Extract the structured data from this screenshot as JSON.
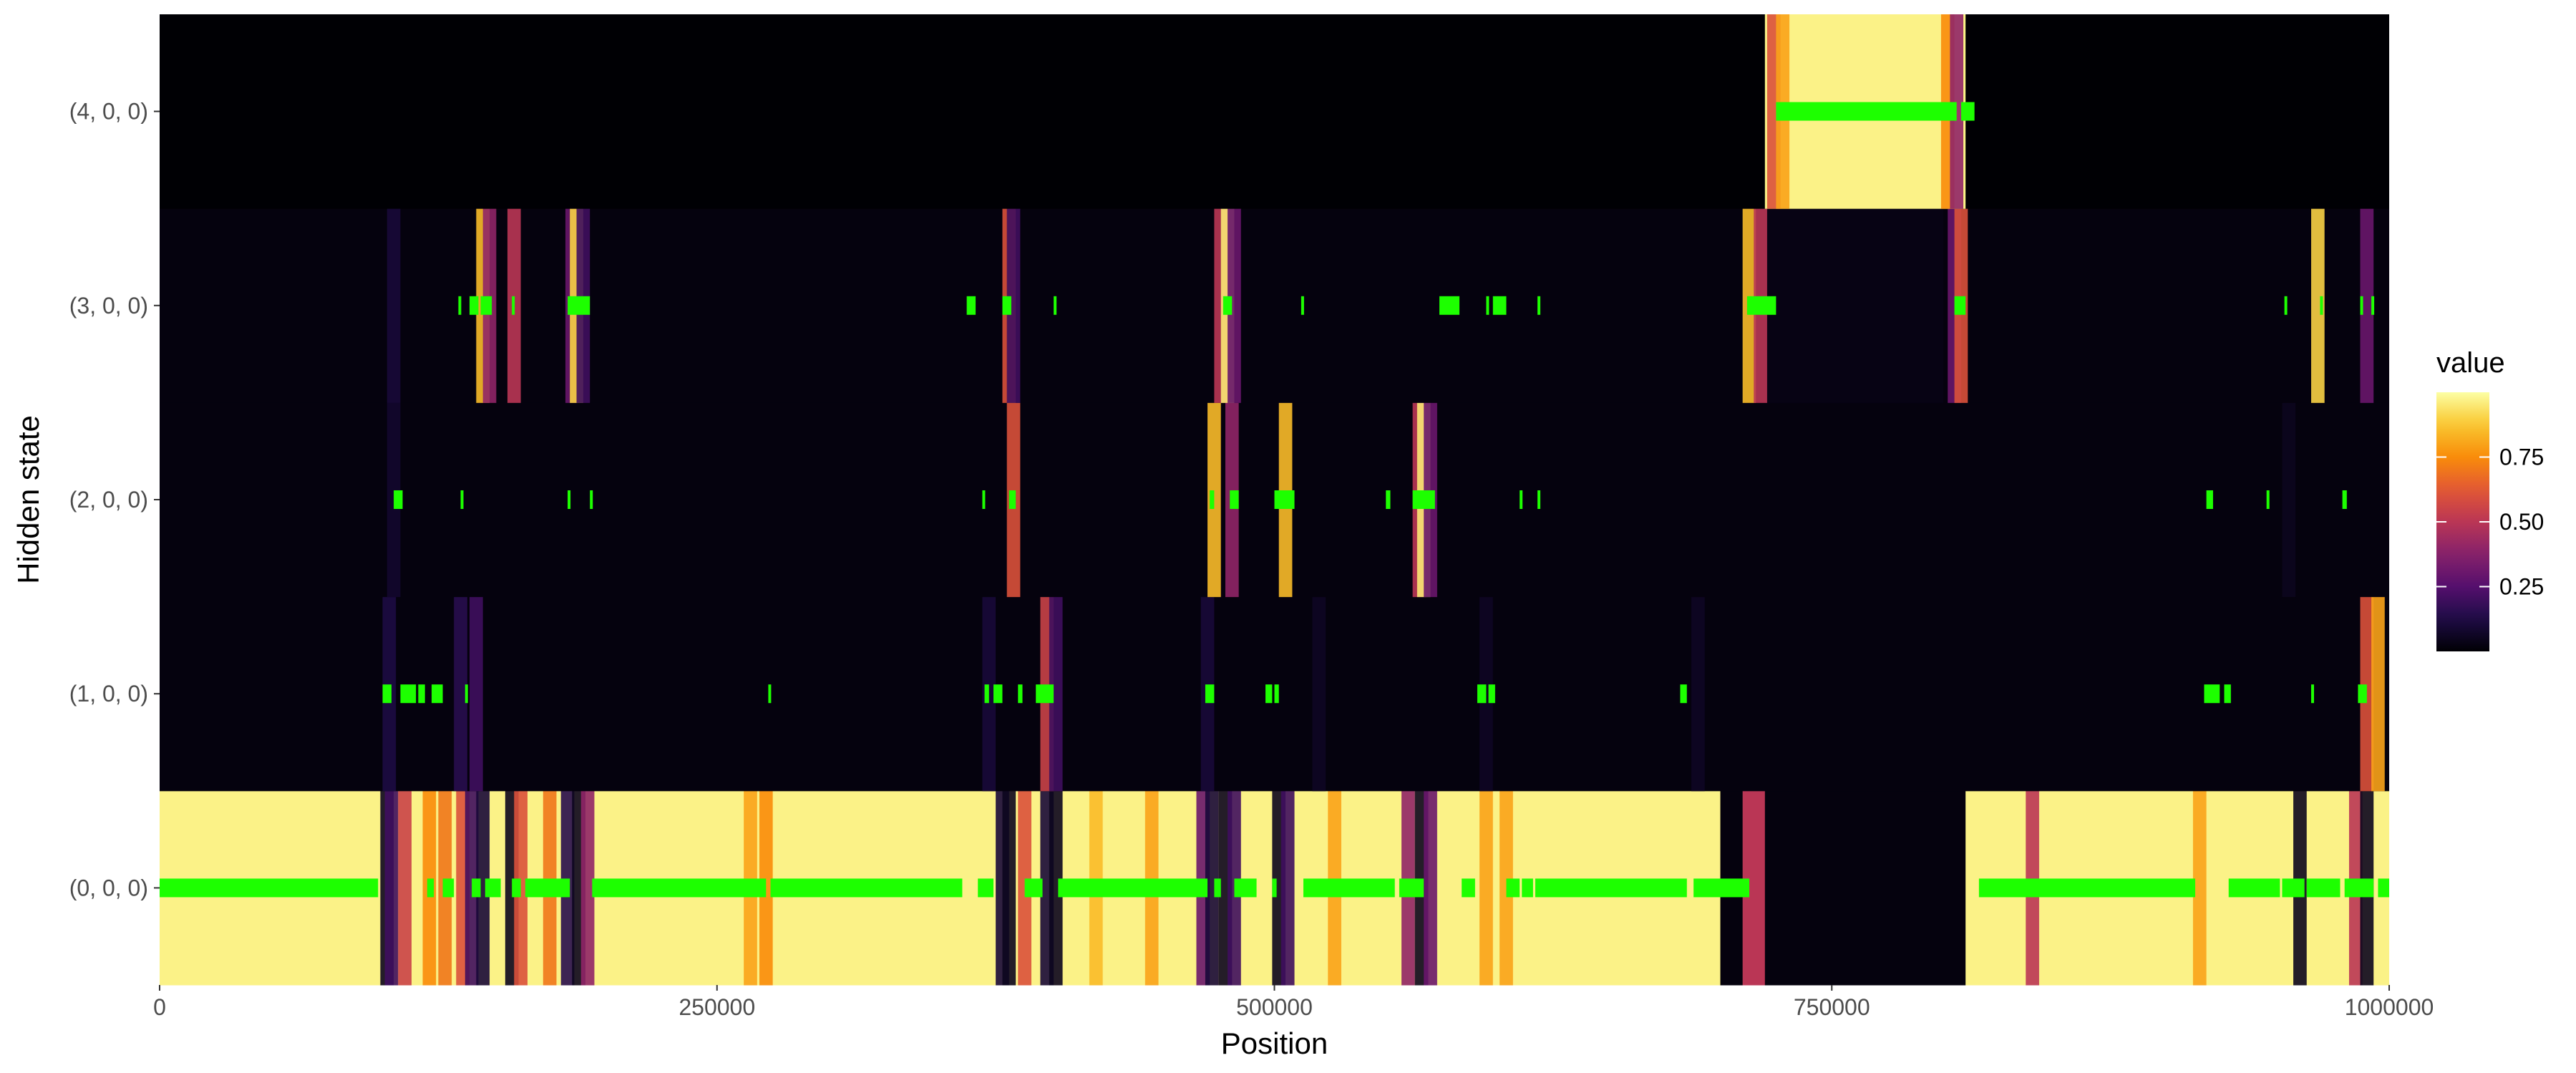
{
  "chart_data": {
    "type": "heatmap",
    "xlabel": "Position",
    "ylabel": "Hidden state",
    "xlim": [
      0,
      1000000
    ],
    "x_ticks": [
      0,
      250000,
      500000,
      750000,
      1000000
    ],
    "x_tick_labels": [
      "0",
      "250000",
      "500000",
      "750000",
      "1000000"
    ],
    "y_categories": [
      "(0, 0, 0)",
      "(1, 0, 0)",
      "(2, 0, 0)",
      "(3, 0, 0)",
      "(4, 0, 0)"
    ],
    "colorscale": "inferno",
    "colors": {
      "low": "#000004",
      "mid_low": "#3b0f70",
      "mid": "#b5367a",
      "mid_high": "#fb8d29",
      "high": "#fcffa4",
      "path": "#1dff00"
    },
    "legend": {
      "title": "value",
      "placement": "right",
      "range": [
        0,
        1
      ],
      "ticks": [
        0.25,
        0.5,
        0.75
      ],
      "tick_labels": [
        "0.25",
        "0.50",
        "0.75"
      ]
    },
    "grid": false,
    "note_green": "decoded path",
    "series": [
      {
        "state": "(0, 0, 0)",
        "base_value": 0.97,
        "blocks": [
          {
            "start": 700000,
            "end": 810000,
            "value": 0.02
          },
          {
            "start": 710000,
            "end": 720000,
            "value": 0.5
          }
        ],
        "dips": [
          [
            102000,
            0.05
          ],
          [
            104000,
            0.2
          ],
          [
            110000,
            0.55
          ],
          [
            121000,
            0.75
          ],
          [
            128000,
            0.7
          ],
          [
            136000,
            0.6
          ],
          [
            140000,
            0.2
          ],
          [
            145000,
            0.1
          ],
          [
            158000,
            0.05
          ],
          [
            162000,
            0.6
          ],
          [
            175000,
            0.7
          ],
          [
            183000,
            0.15
          ],
          [
            188000,
            0.05
          ],
          [
            192000,
            0.4
          ],
          [
            265000,
            0.8
          ],
          [
            272000,
            0.75
          ],
          [
            378000,
            0.1
          ],
          [
            381000,
            0.05
          ],
          [
            388000,
            0.6
          ],
          [
            398000,
            0.1
          ],
          [
            402000,
            0.05
          ],
          [
            420000,
            0.85
          ],
          [
            445000,
            0.8
          ],
          [
            468000,
            0.3
          ],
          [
            472000,
            0.1
          ],
          [
            478000,
            0.05
          ],
          [
            482000,
            0.2
          ],
          [
            502000,
            0.05
          ],
          [
            506000,
            0.2
          ],
          [
            527000,
            0.8
          ],
          [
            560000,
            0.4
          ],
          [
            566000,
            0.05
          ],
          [
            570000,
            0.3
          ],
          [
            595000,
            0.8
          ],
          [
            604000,
            0.8
          ],
          [
            840000,
            0.5
          ],
          [
            915000,
            0.8
          ],
          [
            960000,
            0.05
          ],
          [
            985000,
            0.5
          ],
          [
            990000,
            0.05
          ]
        ],
        "path_segments": [
          [
            0,
            98000
          ],
          [
            120000,
            123000
          ],
          [
            127000,
            132000
          ],
          [
            140000,
            144000
          ],
          [
            146000,
            153000
          ],
          [
            158000,
            162000
          ],
          [
            164000,
            184000
          ],
          [
            194000,
            272000
          ],
          [
            274000,
            360000
          ],
          [
            367000,
            374000
          ],
          [
            388000,
            396000
          ],
          [
            403000,
            470000
          ],
          [
            473000,
            476000
          ],
          [
            482000,
            492000
          ],
          [
            499000,
            501000
          ],
          [
            513000,
            554000
          ],
          [
            556000,
            567000
          ],
          [
            584000,
            590000
          ],
          [
            604000,
            610000
          ],
          [
            611000,
            616000
          ],
          [
            617000,
            685000
          ],
          [
            688000,
            713000
          ],
          [
            816000,
            913000
          ],
          [
            928000,
            951000
          ],
          [
            952000,
            962000
          ],
          [
            963000,
            978000
          ],
          [
            980000,
            993000
          ],
          [
            995000,
            1000000
          ]
        ]
      },
      {
        "state": "(1, 0, 0)",
        "base_value": 0.02,
        "blocks": [],
        "dips": [
          [
            103000,
            0.12
          ],
          [
            135000,
            0.15
          ],
          [
            142000,
            0.2
          ],
          [
            372000,
            0.1
          ],
          [
            398000,
            0.55
          ],
          [
            402000,
            0.2
          ],
          [
            470000,
            0.1
          ],
          [
            520000,
            0.06
          ],
          [
            595000,
            0.06
          ],
          [
            690000,
            0.06
          ],
          [
            990000,
            0.6
          ],
          [
            995000,
            0.8
          ]
        ],
        "path_segments": [
          [
            100000,
            104000
          ],
          [
            108000,
            115000
          ],
          [
            116000,
            119000
          ],
          [
            122000,
            127000
          ],
          [
            137000,
            138000
          ],
          [
            273000,
            274000
          ],
          [
            370000,
            372000
          ],
          [
            374000,
            378000
          ],
          [
            385000,
            387000
          ],
          [
            393000,
            401000
          ],
          [
            469000,
            473000
          ],
          [
            496000,
            499000
          ],
          [
            500000,
            502000
          ],
          [
            591000,
            595000
          ],
          [
            596000,
            599000
          ],
          [
            682000,
            685000
          ],
          [
            917000,
            924000
          ],
          [
            926000,
            929000
          ],
          [
            965000,
            966000
          ],
          [
            986000,
            990000
          ]
        ]
      },
      {
        "state": "(2, 0, 0)",
        "base_value": 0.02,
        "blocks": [],
        "dips": [
          [
            105000,
            0.08
          ],
          [
            383000,
            0.6
          ],
          [
            473000,
            0.85
          ],
          [
            481000,
            0.4
          ],
          [
            505000,
            0.85
          ],
          [
            565000,
            0.5
          ],
          [
            567000,
            0.95
          ],
          [
            570000,
            0.3
          ],
          [
            955000,
            0.05
          ]
        ],
        "path_segments": [
          [
            105000,
            109000
          ],
          [
            135000,
            136000
          ],
          [
            183000,
            184000
          ],
          [
            193000,
            194000
          ],
          [
            369000,
            370000
          ],
          [
            381000,
            384000
          ],
          [
            471000,
            473000
          ],
          [
            480000,
            484000
          ],
          [
            500000,
            509000
          ],
          [
            550000,
            552000
          ],
          [
            562000,
            572000
          ],
          [
            610000,
            611000
          ],
          [
            618000,
            619000
          ],
          [
            918000,
            921000
          ],
          [
            945000,
            946000
          ],
          [
            979000,
            981000
          ]
        ]
      },
      {
        "state": "(3, 0, 0)",
        "base_value": 0.02,
        "blocks": [
          {
            "start": 715000,
            "end": 800000,
            "value": 0.03
          }
        ],
        "dips": [
          [
            105000,
            0.1
          ],
          [
            145000,
            0.85
          ],
          [
            148000,
            0.4
          ],
          [
            159000,
            0.5
          ],
          [
            185000,
            0.3
          ],
          [
            187000,
            0.9
          ],
          [
            190000,
            0.2
          ],
          [
            381000,
            0.6
          ],
          [
            383000,
            0.2
          ],
          [
            476000,
            0.5
          ],
          [
            479000,
            0.95
          ],
          [
            482000,
            0.3
          ],
          [
            713000,
            0.85
          ],
          [
            718000,
            0.5
          ],
          [
            805000,
            0.3
          ],
          [
            808000,
            0.6
          ],
          [
            968000,
            0.9
          ],
          [
            990000,
            0.3
          ]
        ],
        "path_segments": [
          [
            134000,
            135000
          ],
          [
            139000,
            143000
          ],
          [
            144000,
            149000
          ],
          [
            158000,
            159000
          ],
          [
            183000,
            193000
          ],
          [
            362000,
            366000
          ],
          [
            378000,
            382000
          ],
          [
            401000,
            402000
          ],
          [
            477000,
            481000
          ],
          [
            512000,
            513000
          ],
          [
            574000,
            583000
          ],
          [
            595000,
            596000
          ],
          [
            598000,
            604000
          ],
          [
            618000,
            619000
          ],
          [
            712000,
            725000
          ],
          [
            805000,
            810000
          ],
          [
            953000,
            954000
          ],
          [
            969000,
            970000
          ],
          [
            987000,
            988000
          ],
          [
            992000,
            993000
          ]
        ]
      },
      {
        "state": "(4, 0, 0)",
        "base_value": 0.0,
        "blocks": [
          {
            "start": 720000,
            "end": 810000,
            "value": 0.97
          }
        ],
        "dips": [
          [
            724000,
            0.6
          ],
          [
            728000,
            0.8
          ],
          [
            802000,
            0.75
          ],
          [
            806000,
            0.4
          ]
        ],
        "path_segments": [
          [
            725000,
            806000
          ],
          [
            808000,
            814000
          ]
        ]
      }
    ]
  }
}
